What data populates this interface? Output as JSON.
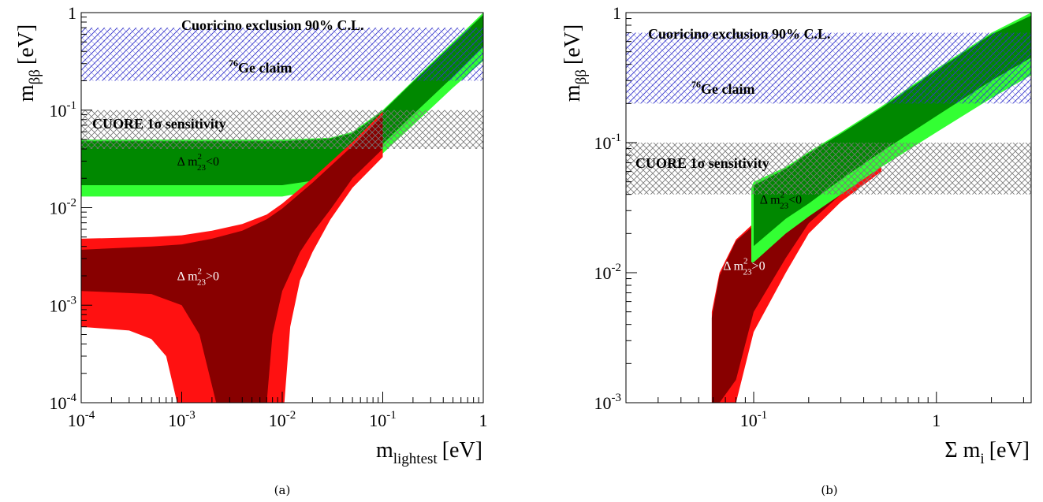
{
  "colors": {
    "nh_light": "#33ff33",
    "nh_dark": "#008800",
    "ih_light": "#ff1111",
    "ih_dark": "#880000",
    "cuoricino_hatch": "#3333cc",
    "cuore_hatch": "#777777"
  },
  "chart_data": [
    {
      "type": "area",
      "panel_caption": "(a)",
      "xlabel_main": "m",
      "xlabel_sub": "lightest",
      "xlabel_unit": "[eV]",
      "ylabel_main": "m",
      "ylabel_sub": "ββ",
      "ylabel_unit": "[eV]",
      "x_scale": "log",
      "y_scale": "log",
      "xlim": [
        0.0001,
        1
      ],
      "ylim": [
        0.0001,
        1
      ],
      "x_ticks": [
        {
          "base": "10",
          "exp": "-4"
        },
        {
          "base": "10",
          "exp": "-3"
        },
        {
          "base": "10",
          "exp": "-2"
        },
        {
          "base": "10",
          "exp": "-1"
        },
        {
          "base": "1",
          "exp": ""
        }
      ],
      "y_ticks": [
        {
          "base": "10",
          "exp": "-4"
        },
        {
          "base": "10",
          "exp": "-3"
        },
        {
          "base": "10",
          "exp": "-2"
        },
        {
          "base": "10",
          "exp": "-1"
        },
        {
          "base": "1",
          "exp": ""
        }
      ],
      "bands": [
        {
          "label": "Cuoricino exclusion 90% C.L.",
          "ymin": 0.2,
          "ymax": 0.7,
          "color_key": "cuoricino_hatch"
        },
        {
          "label": "CUORE 1σ sensitivity",
          "ymin": 0.04,
          "ymax": 0.1,
          "color_key": "cuore_hatch"
        }
      ],
      "band_text": {
        "cuoricino": "Cuoricino exclusion 90% C.L.",
        "ge_sup": "76",
        "ge": "Ge claim",
        "cuore": "CUORE 1σ sensitivity"
      },
      "regions": [
        {
          "name": "inverted-light",
          "color_key": "nh_light",
          "x": [
            0.0001,
            0.01,
            0.03,
            0.05,
            0.1,
            0.2,
            0.5,
            1
          ],
          "lower": [
            0.013,
            0.013,
            0.016,
            0.02,
            0.036,
            0.07,
            0.17,
            0.32
          ],
          "upper": [
            0.05,
            0.05,
            0.052,
            0.06,
            0.1,
            0.2,
            0.5,
            1.0
          ]
        },
        {
          "name": "inverted-dark",
          "color_key": "nh_dark",
          "x": [
            0.0001,
            0.01,
            0.03,
            0.05,
            0.1,
            0.2,
            0.5,
            1
          ],
          "lower": [
            0.017,
            0.017,
            0.02,
            0.025,
            0.045,
            0.09,
            0.22,
            0.45
          ],
          "upper": [
            0.048,
            0.048,
            0.051,
            0.058,
            0.097,
            0.195,
            0.48,
            0.95
          ]
        },
        {
          "name": "normal-light",
          "color_key": "ih_light",
          "x": [
            0.0001,
            0.0005,
            0.001,
            0.002,
            0.004,
            0.007,
            0.01,
            0.02,
            0.05,
            0.1
          ],
          "upper": [
            0.0048,
            0.005,
            0.0052,
            0.0058,
            0.0068,
            0.0085,
            0.011,
            0.02,
            0.047,
            0.096
          ],
          "lower_segments": [
            {
              "x": [
                0.0001,
                0.0003,
                0.0005,
                0.0007,
                0.0009
              ],
              "y": [
                0.0006,
                0.00055,
                0.00045,
                0.0003,
                0.0001
              ]
            },
            {
              "x": [
                0.0105,
                0.012,
                0.015,
                0.02,
                0.03,
                0.05,
                0.1
              ],
              "y": [
                0.0001,
                0.0006,
                0.0018,
                0.0035,
                0.0075,
                0.016,
                0.033
              ]
            }
          ]
        },
        {
          "name": "normal-dark",
          "color_key": "ih_dark",
          "x": [
            0.0001,
            0.0005,
            0.001,
            0.002,
            0.004,
            0.007,
            0.01,
            0.02,
            0.05,
            0.1
          ],
          "upper": [
            0.0037,
            0.004,
            0.0042,
            0.0048,
            0.0058,
            0.0076,
            0.0098,
            0.018,
            0.043,
            0.09
          ],
          "lower_segments": [
            {
              "x": [
                0.0001,
                0.0005,
                0.001,
                0.0015,
                0.0022
              ],
              "y": [
                0.0014,
                0.0013,
                0.001,
                0.0005,
                0.0001
              ]
            },
            {
              "x": [
                0.007,
                0.008,
                0.01,
                0.015,
                0.02,
                0.03,
                0.05,
                0.1
              ],
              "y": [
                0.0001,
                0.0005,
                0.0014,
                0.0035,
                0.0055,
                0.0095,
                0.02,
                0.04
              ]
            }
          ]
        }
      ],
      "annotations": [
        {
          "prefix": "Δ m",
          "sup": "2",
          "sub": "23",
          "op": "<0",
          "x": 0.0009,
          "y": 0.027,
          "fill": "#000000"
        },
        {
          "prefix": "Δ m",
          "sup": "2",
          "sub": "23",
          "op": ">0",
          "x": 0.0009,
          "y": 0.0018,
          "fill": "#ffffff"
        }
      ]
    },
    {
      "type": "area",
      "panel_caption": "(b)",
      "xlabel_main": "Σ m",
      "xlabel_sub": "i",
      "xlabel_unit": "[eV]",
      "ylabel_main": "m",
      "ylabel_sub": "ββ",
      "ylabel_unit": "[eV]",
      "x_scale": "log",
      "y_scale": "log",
      "xlim": [
        0.02,
        3.3
      ],
      "ylim": [
        0.001,
        1
      ],
      "x_ticks": [
        {
          "base": "10",
          "exp": "-1",
          "value": 0.1
        },
        {
          "base": "1",
          "exp": "",
          "value": 1
        }
      ],
      "y_ticks": [
        {
          "base": "10",
          "exp": "-3"
        },
        {
          "base": "10",
          "exp": "-2"
        },
        {
          "base": "10",
          "exp": "-1"
        },
        {
          "base": "1",
          "exp": ""
        }
      ],
      "bands": [
        {
          "label": "Cuoricino exclusion 90% C.L.",
          "ymin": 0.2,
          "ymax": 0.7,
          "color_key": "cuoricino_hatch"
        },
        {
          "label": "CUORE 1σ sensitivity",
          "ymin": 0.04,
          "ymax": 0.1,
          "color_key": "cuore_hatch"
        }
      ],
      "band_text": {
        "cuoricino": "Cuoricino exclusion 90% C.L.",
        "ge_sup": "76",
        "ge": "Ge claim",
        "cuore": "CUORE 1σ sensitivity"
      },
      "regions": [
        {
          "name": "normal-light",
          "color_key": "ih_light",
          "x": [
            0.059,
            0.065,
            0.08,
            0.1,
            0.15,
            0.2,
            0.3,
            0.5
          ],
          "upper": [
            0.005,
            0.01,
            0.018,
            0.024,
            0.045,
            0.06,
            0.09,
            0.15
          ],
          "lower": [
            0.001,
            0.001,
            0.001,
            0.0035,
            0.01,
            0.02,
            0.035,
            0.06
          ]
        },
        {
          "name": "normal-dark",
          "color_key": "ih_dark",
          "x": [
            0.059,
            0.065,
            0.08,
            0.1,
            0.15,
            0.2,
            0.3,
            0.5
          ],
          "upper": [
            0.0045,
            0.0095,
            0.0175,
            0.023,
            0.044,
            0.058,
            0.088,
            0.145
          ],
          "lower": [
            0.001,
            0.001,
            0.0015,
            0.005,
            0.013,
            0.024,
            0.04,
            0.07
          ]
        },
        {
          "name": "inverted-light",
          "color_key": "nh_light",
          "x": [
            0.097,
            0.1,
            0.15,
            0.2,
            0.3,
            0.5,
            1,
            2,
            3.3
          ],
          "upper": [
            0.045,
            0.05,
            0.065,
            0.085,
            0.12,
            0.19,
            0.37,
            0.7,
            1.0
          ],
          "lower": [
            0.012,
            0.012,
            0.02,
            0.027,
            0.04,
            0.065,
            0.12,
            0.22,
            0.33
          ]
        },
        {
          "name": "inverted-dark",
          "color_key": "nh_dark",
          "x": [
            0.1,
            0.15,
            0.2,
            0.3,
            0.5,
            1,
            2,
            3.3
          ],
          "upper": [
            0.047,
            0.063,
            0.083,
            0.117,
            0.185,
            0.36,
            0.68,
            0.95
          ],
          "lower": [
            0.016,
            0.026,
            0.034,
            0.052,
            0.085,
            0.16,
            0.3,
            0.45
          ]
        }
      ],
      "annotations": [
        {
          "prefix": "Δ m",
          "sup": "2",
          "sub": "23",
          "op": "<0",
          "x": 0.108,
          "y": 0.034,
          "fill": "#000000"
        },
        {
          "prefix": "Δ m",
          "sup": "2",
          "sub": "23",
          "op": ">0",
          "x": 0.068,
          "y": 0.0105,
          "fill": "#ffffff"
        }
      ]
    }
  ]
}
